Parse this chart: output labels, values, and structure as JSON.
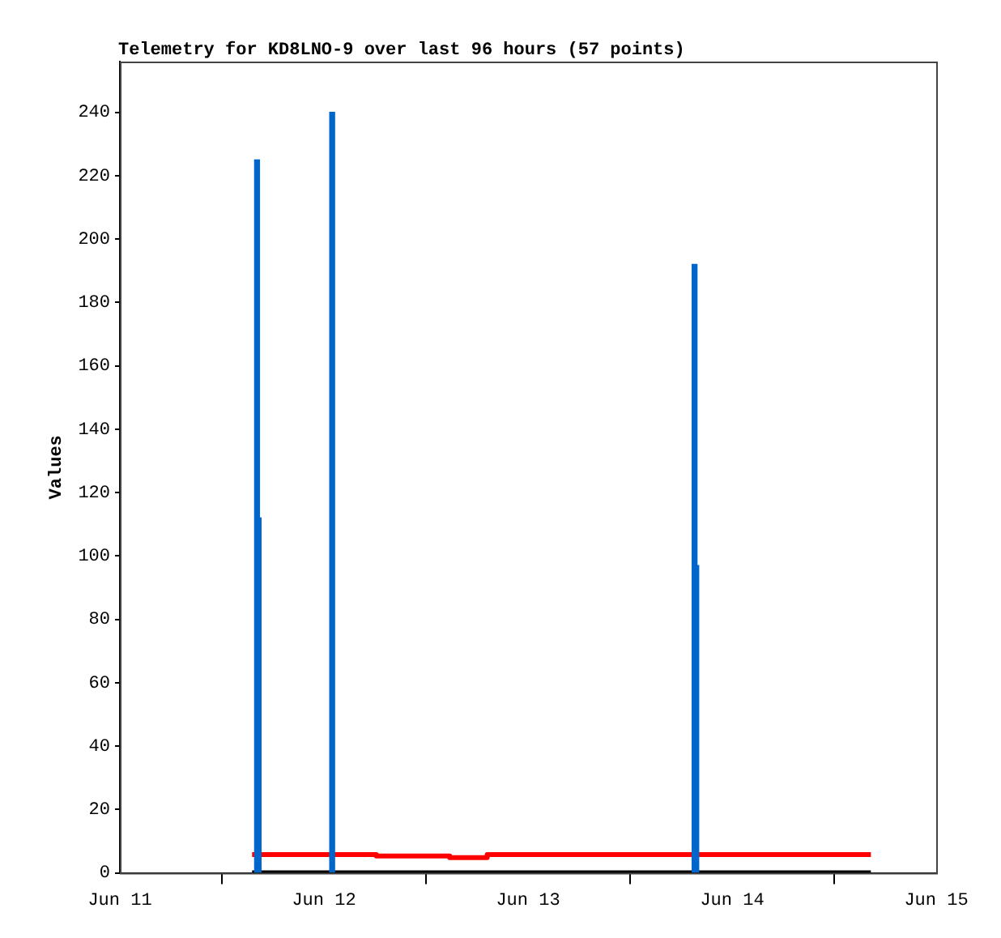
{
  "chart_data": {
    "type": "line",
    "title": "Telemetry for KD8LNO-9 over last 96 hours (57 points)",
    "ylabel": "Values",
    "xlim": [
      "--06-11",
      "--06-15"
    ],
    "xticks": [
      {
        "value": "--06-11",
        "label": "Jun 11"
      },
      {
        "value": "--06-12",
        "label": "Jun 12"
      },
      {
        "value": "--06-13",
        "label": "Jun 13"
      },
      {
        "value": "--06-14",
        "label": "Jun 14"
      },
      {
        "value": "--06-15",
        "label": "Jun 15"
      }
    ],
    "ylim": [
      0,
      256
    ],
    "yticks": [
      0,
      20,
      40,
      60,
      80,
      100,
      120,
      140,
      160,
      180,
      200,
      220,
      240
    ],
    "grid": false,
    "legend": false,
    "series": [
      {
        "color": "#000000",
        "x": [
          "--06-11T15:33",
          "--06-14T16:19"
        ],
        "values": [
          0,
          0
        ]
      },
      {
        "type": "step",
        "color": "#ff0000",
        "x": [
          "--06-11T15:33",
          "--06-12T06:09",
          "--06-12T14:47",
          "--06-12T19:12",
          "--06-14T16:19"
        ],
        "values": [
          5.8,
          5.3,
          4.8,
          5.8,
          5.8
        ]
      },
      {
        "type": "bar",
        "color": "#0066cc",
        "x": [
          "--06-11T16:08",
          "--06-11T16:19",
          "--06-12T00:58",
          "--06-13T19:35",
          "--06-13T19:47"
        ],
        "values": [
          225,
          112,
          240,
          192,
          97
        ]
      }
    ]
  }
}
